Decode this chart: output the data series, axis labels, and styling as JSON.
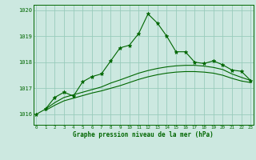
{
  "title": "Graphe pression niveau de la mer (hPa)",
  "bg_color": "#cce8e0",
  "grid_color": "#99ccbb",
  "line_color": "#006600",
  "x_ticks": [
    0,
    1,
    2,
    3,
    4,
    5,
    6,
    7,
    8,
    9,
    10,
    11,
    12,
    13,
    14,
    15,
    16,
    17,
    18,
    19,
    20,
    21,
    22,
    23
  ],
  "xlim": [
    -0.3,
    23.3
  ],
  "ylim": [
    1015.6,
    1020.2
  ],
  "yticks": [
    1016,
    1017,
    1018,
    1019,
    1020
  ],
  "series1_x": [
    0,
    1,
    2,
    3,
    4,
    5,
    6,
    7,
    8,
    9,
    10,
    11,
    12,
    13,
    14,
    15,
    16,
    17,
    18,
    19,
    20,
    21,
    22,
    23
  ],
  "series1_y": [
    1016.0,
    1016.2,
    1016.65,
    1016.85,
    1016.7,
    1017.25,
    1017.45,
    1017.55,
    1018.05,
    1018.55,
    1018.65,
    1019.1,
    1019.85,
    1019.5,
    1019.0,
    1018.4,
    1018.4,
    1018.0,
    1017.95,
    1018.05,
    1017.9,
    1017.7,
    1017.65,
    1017.3
  ],
  "series2_x": [
    1,
    2,
    3,
    4,
    5,
    6,
    7,
    8,
    9,
    10,
    11,
    12,
    13,
    14,
    15,
    16,
    17,
    18,
    19,
    20,
    21,
    22,
    23
  ],
  "series2_y": [
    1016.2,
    1016.45,
    1016.65,
    1016.75,
    1016.85,
    1016.95,
    1017.05,
    1017.2,
    1017.32,
    1017.45,
    1017.58,
    1017.68,
    1017.76,
    1017.82,
    1017.86,
    1017.88,
    1017.88,
    1017.85,
    1017.8,
    1017.72,
    1017.55,
    1017.42,
    1017.3
  ],
  "series3_x": [
    1,
    2,
    3,
    4,
    5,
    6,
    7,
    8,
    9,
    10,
    11,
    12,
    13,
    14,
    15,
    16,
    17,
    18,
    19,
    20,
    21,
    22,
    23
  ],
  "series3_y": [
    1016.15,
    1016.35,
    1016.52,
    1016.62,
    1016.72,
    1016.82,
    1016.9,
    1017.0,
    1017.1,
    1017.22,
    1017.34,
    1017.44,
    1017.52,
    1017.58,
    1017.62,
    1017.64,
    1017.64,
    1017.62,
    1017.58,
    1017.5,
    1017.38,
    1017.28,
    1017.22
  ]
}
